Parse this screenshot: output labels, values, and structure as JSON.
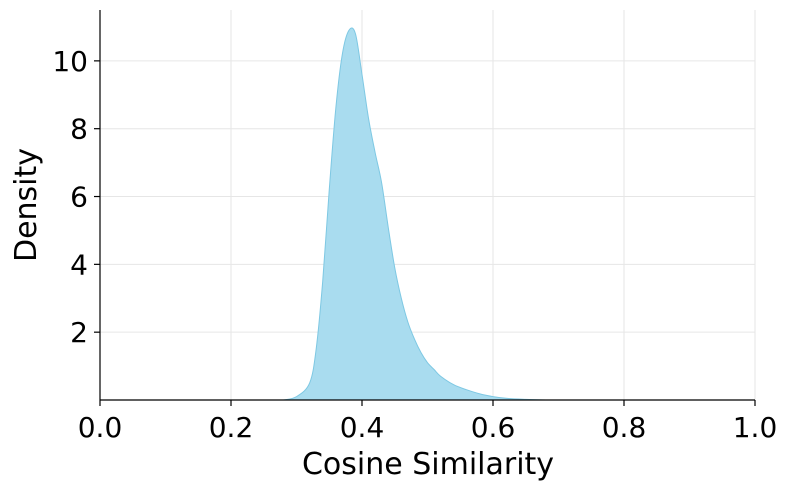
{
  "chart_data": {
    "type": "area",
    "title": "",
    "xlabel": "Cosine Similarity",
    "ylabel": "Density",
    "xlim": [
      0.0,
      1.0
    ],
    "ylim": [
      0.0,
      11.5
    ],
    "x_ticks": [
      "0.0",
      "0.2",
      "0.4",
      "0.6",
      "0.8",
      "1.0"
    ],
    "y_ticks": [
      "2",
      "4",
      "6",
      "8",
      "10"
    ],
    "grid": true,
    "legend": "none",
    "fill_color": "#a9dcef",
    "line_color": "#7ec8e3",
    "series": [
      {
        "x": [
          0.28,
          0.3,
          0.32,
          0.33,
          0.34,
          0.35,
          0.36,
          0.37,
          0.38,
          0.39,
          0.4,
          0.41,
          0.42,
          0.43,
          0.44,
          0.45,
          0.46,
          0.47,
          0.48,
          0.49,
          0.5,
          0.51,
          0.52,
          0.54,
          0.56,
          0.58,
          0.6,
          0.62,
          0.65,
          0.68
        ],
        "y": [
          0.0,
          0.1,
          0.5,
          1.5,
          3.5,
          6.2,
          8.6,
          10.2,
          10.9,
          10.8,
          9.6,
          8.3,
          7.3,
          6.4,
          5.1,
          3.9,
          3.0,
          2.3,
          1.8,
          1.4,
          1.1,
          0.9,
          0.7,
          0.45,
          0.3,
          0.18,
          0.1,
          0.05,
          0.02,
          0.0
        ]
      }
    ]
  }
}
